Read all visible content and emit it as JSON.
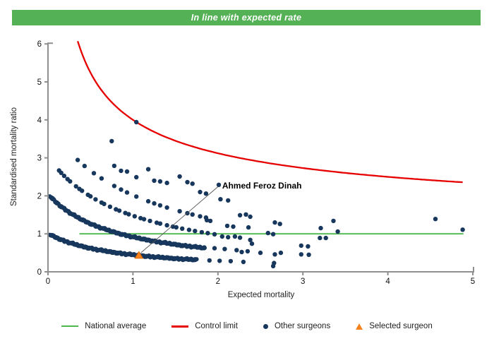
{
  "banner": {
    "text": "In line with expected rate",
    "bg_color": "#55b155",
    "text_color": "#ffffff"
  },
  "axes": {
    "x_label": "Expected mortality",
    "y_label": "Standardised mortality ratio",
    "x_ticks": [
      0,
      1,
      2,
      3,
      4,
      5
    ],
    "y_ticks": [
      0,
      1,
      2,
      3,
      4,
      5,
      6
    ]
  },
  "chart_data": {
    "type": "scatter",
    "title": "In line with expected rate",
    "xlabel": "Expected mortality",
    "ylabel": "Standardised mortality ratio",
    "xlim": [
      0,
      5
    ],
    "ylim": [
      0,
      6
    ],
    "grid": false,
    "legend_position": "bottom",
    "national_average": {
      "label": "National average",
      "y": 1.0,
      "x_start": 0.37,
      "x_end": 4.89,
      "color": "#4db84d"
    },
    "control_limit": {
      "label": "Control limit",
      "formula": "y = 1 + 3/sqrt(x)",
      "x_start": 0.35,
      "x_end": 4.89,
      "y_at_start": 6.07,
      "y_at_end": 2.36,
      "color": "#e60000"
    },
    "selected_surgeon": {
      "label": "Selected surgeon",
      "name": "Ahmed Feroz Dinah",
      "x": 1.07,
      "y": 0.43,
      "marker": "triangle",
      "color": "#f6821f",
      "annotation": {
        "text_x": 2.05,
        "text_y": 2.27,
        "elbow_x": 2.0,
        "elbow_y": 2.24
      }
    },
    "other_surgeons": {
      "label": "Other surgeons",
      "marker": "circle",
      "color": "#17375d",
      "bands_formula": "y = k/(x + c)",
      "bands": [
        {
          "k": 0.8,
          "c": 0.79,
          "x_start": 0.02,
          "x_end": 1.75,
          "step": 0.016
        },
        {
          "k": 1.66,
          "c": 0.81,
          "x_start": 0.02,
          "x_end": 1.85,
          "step": 0.017
        },
        {
          "k": 2.88,
          "c": 0.95,
          "xs": [
            0.13,
            0.155,
            0.19,
            0.23,
            0.26,
            0.33,
            0.37,
            0.4,
            0.47,
            0.5,
            0.56,
            0.63,
            0.66,
            0.73,
            0.8,
            0.84,
            0.91,
            0.95,
            1.02,
            1.09,
            1.13,
            1.2,
            1.28,
            1.32,
            1.4,
            1.47,
            1.51,
            1.58,
            1.66,
            1.73,
            1.81,
            1.88,
            1.96
          ]
        },
        {
          "k": 4.18,
          "c": 1.07,
          "xs": [
            0.35,
            0.43,
            0.54,
            0.63,
            0.78,
            0.86,
            0.93,
            1.04,
            1.18,
            1.25,
            1.32,
            1.4,
            1.55,
            1.64,
            1.7,
            1.79,
            1.86
          ]
        }
      ],
      "scatter": [
        [
          0.75,
          3.44
        ],
        [
          1.04,
          3.94
        ],
        [
          0.78,
          2.79
        ],
        [
          0.86,
          2.66
        ],
        [
          0.93,
          2.64
        ],
        [
          1.04,
          2.49
        ],
        [
          1.18,
          2.7
        ],
        [
          1.25,
          2.4
        ],
        [
          1.32,
          2.38
        ],
        [
          1.4,
          2.34
        ],
        [
          1.55,
          2.51
        ],
        [
          1.64,
          2.36
        ],
        [
          1.7,
          2.32
        ],
        [
          1.79,
          2.1
        ],
        [
          1.86,
          2.06
        ],
        [
          2.01,
          2.29
        ],
        [
          2.03,
          1.91
        ],
        [
          2.12,
          1.88
        ],
        [
          1.87,
          1.36
        ],
        [
          1.91,
          1.34
        ],
        [
          2.11,
          1.21
        ],
        [
          2.18,
          1.19
        ],
        [
          2.26,
          1.49
        ],
        [
          2.33,
          1.51
        ],
        [
          2.38,
          1.45
        ],
        [
          2.36,
          1.17
        ],
        [
          2.67,
          1.3
        ],
        [
          2.73,
          1.26
        ],
        [
          2.59,
          1.02
        ],
        [
          2.65,
          0.99
        ],
        [
          2.05,
          0.93
        ],
        [
          2.12,
          0.91
        ],
        [
          2.2,
          0.93
        ],
        [
          2.26,
          0.9
        ],
        [
          2.38,
          0.84
        ],
        [
          2.4,
          0.74
        ],
        [
          2.28,
          0.52
        ],
        [
          2.67,
          0.46
        ],
        [
          2.74,
          0.5
        ],
        [
          2.65,
          0.15
        ],
        [
          1.9,
          0.3
        ],
        [
          2.02,
          0.29
        ],
        [
          2.15,
          0.28
        ],
        [
          2.3,
          0.26
        ],
        [
          2.66,
          0.23
        ],
        [
          1.96,
          0.62
        ],
        [
          2.08,
          0.6
        ],
        [
          2.22,
          0.57
        ],
        [
          2.35,
          0.54
        ],
        [
          2.5,
          0.5
        ],
        [
          2.98,
          0.69
        ],
        [
          3.06,
          0.67
        ],
        [
          2.98,
          0.46
        ],
        [
          3.07,
          0.45
        ],
        [
          3.2,
          0.89
        ],
        [
          3.27,
          0.89
        ],
        [
          3.36,
          1.34
        ],
        [
          3.21,
          1.15
        ],
        [
          3.41,
          1.06
        ],
        [
          4.56,
          1.39
        ],
        [
          4.88,
          1.11
        ]
      ]
    }
  },
  "legend": {
    "items": [
      {
        "label": "National average",
        "swatch": "line",
        "color": "#4db84d"
      },
      {
        "label": "Control limit",
        "swatch": "line",
        "color": "#e60000"
      },
      {
        "label": "Other surgeons",
        "swatch": "dot",
        "color": "#17375d"
      },
      {
        "label": "Selected surgeon",
        "swatch": "triangle",
        "color": "#f6821f"
      }
    ]
  }
}
